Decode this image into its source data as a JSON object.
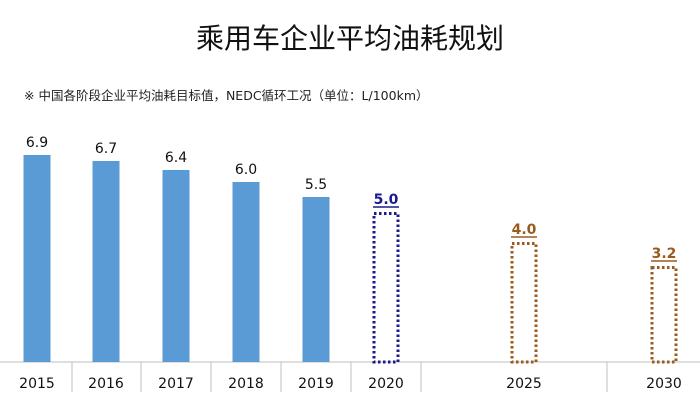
{
  "chart_data": {
    "type": "bar",
    "title": "乘用车企业平均油耗规划",
    "subtitle": "※ 中国各阶段企业平均油耗目标值，NEDC循环工况（单位：L/100km）",
    "xlabel": "",
    "ylabel": "",
    "categories": [
      "2015",
      "2016",
      "2017",
      "2018",
      "2019",
      "2020",
      "2025",
      "2030"
    ],
    "values": [
      6.9,
      6.7,
      6.4,
      6.0,
      5.5,
      5.0,
      4.0,
      3.2
    ],
    "value_labels": [
      "6.9",
      "6.7",
      "6.4",
      "6.0",
      "5.5",
      "5.0",
      "4.0",
      "3.2"
    ],
    "bar_styles": [
      "solid",
      "solid",
      "solid",
      "solid",
      "solid",
      "dotted-outline",
      "dotted-outline",
      "dotted-outline"
    ],
    "colors": [
      "#5b9bd5",
      "#5b9bd5",
      "#5b9bd5",
      "#5b9bd5",
      "#5b9bd5",
      "#1a1a8c",
      "#9b5a1e",
      "#9b5a1e"
    ],
    "label_colors": [
      "#111111",
      "#111111",
      "#111111",
      "#111111",
      "#111111",
      "#1a1a8c",
      "#9b5a1e",
      "#9b5a1e"
    ],
    "underlined_labels": [
      false,
      false,
      false,
      false,
      false,
      true,
      true,
      true
    ],
    "ylim": [
      0,
      7.5
    ],
    "grid": false,
    "legend": "none",
    "axis_color": "#bfbfbf"
  }
}
